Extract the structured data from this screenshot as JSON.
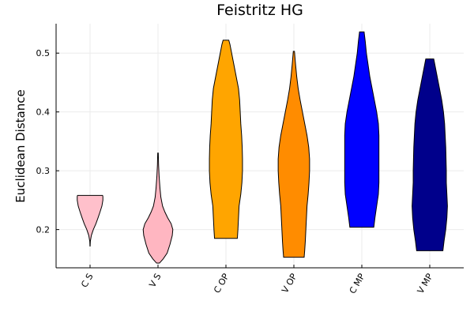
{
  "chart_data": {
    "type": "violin",
    "title": "Feistritz HG",
    "xlabel": "",
    "ylabel": "Euclidean Distance",
    "ylim": [
      0.135,
      0.55
    ],
    "yticks": [
      0.2,
      0.3,
      0.4,
      0.5
    ],
    "ytick_labels": [
      "0.2",
      "0.3",
      "0.4",
      "0.5"
    ],
    "grid": true,
    "legend": "none",
    "categories": [
      "C S",
      "V S",
      "C OP",
      "V OP",
      "C MP",
      "V MP"
    ],
    "series": [
      {
        "category": "C S",
        "color": "#FFC0CB",
        "min": 0.172,
        "max": 0.258,
        "profile": [
          [
            0.172,
            0.003
          ],
          [
            0.18,
            0.01
          ],
          [
            0.19,
            0.045
          ],
          [
            0.2,
            0.115
          ],
          [
            0.21,
            0.205
          ],
          [
            0.22,
            0.28
          ],
          [
            0.23,
            0.35
          ],
          [
            0.24,
            0.415
          ],
          [
            0.25,
            0.45
          ],
          [
            0.256,
            0.45
          ],
          [
            0.258,
            0.44
          ]
        ]
      },
      {
        "category": "V S",
        "color": "#FFB6C1",
        "min": 0.143,
        "max": 0.33,
        "profile": [
          [
            0.143,
            0.05
          ],
          [
            0.15,
            0.18
          ],
          [
            0.16,
            0.32
          ],
          [
            0.175,
            0.42
          ],
          [
            0.19,
            0.5
          ],
          [
            0.2,
            0.52
          ],
          [
            0.21,
            0.46
          ],
          [
            0.22,
            0.34
          ],
          [
            0.23,
            0.24
          ],
          [
            0.24,
            0.16
          ],
          [
            0.255,
            0.1
          ],
          [
            0.27,
            0.07
          ],
          [
            0.29,
            0.04
          ],
          [
            0.31,
            0.02
          ],
          [
            0.33,
            0.01
          ]
        ]
      },
      {
        "category": "C OP",
        "color": "#FFA500",
        "min": 0.185,
        "max": 0.522,
        "profile": [
          [
            0.185,
            0.4
          ],
          [
            0.2,
            0.42
          ],
          [
            0.22,
            0.44
          ],
          [
            0.24,
            0.46
          ],
          [
            0.26,
            0.52
          ],
          [
            0.28,
            0.56
          ],
          [
            0.3,
            0.58
          ],
          [
            0.32,
            0.58
          ],
          [
            0.34,
            0.57
          ],
          [
            0.36,
            0.55
          ],
          [
            0.38,
            0.52
          ],
          [
            0.4,
            0.5
          ],
          [
            0.42,
            0.48
          ],
          [
            0.44,
            0.44
          ],
          [
            0.46,
            0.36
          ],
          [
            0.48,
            0.28
          ],
          [
            0.5,
            0.2
          ],
          [
            0.515,
            0.14
          ],
          [
            0.522,
            0.1
          ]
        ]
      },
      {
        "category": "V OP",
        "color": "#FF8C00",
        "min": 0.153,
        "max": 0.503,
        "profile": [
          [
            0.153,
            0.36
          ],
          [
            0.165,
            0.38
          ],
          [
            0.18,
            0.4
          ],
          [
            0.2,
            0.42
          ],
          [
            0.22,
            0.44
          ],
          [
            0.24,
            0.46
          ],
          [
            0.26,
            0.5
          ],
          [
            0.28,
            0.53
          ],
          [
            0.3,
            0.55
          ],
          [
            0.32,
            0.55
          ],
          [
            0.34,
            0.52
          ],
          [
            0.36,
            0.46
          ],
          [
            0.38,
            0.38
          ],
          [
            0.4,
            0.3
          ],
          [
            0.42,
            0.22
          ],
          [
            0.44,
            0.15
          ],
          [
            0.46,
            0.1
          ],
          [
            0.48,
            0.06
          ],
          [
            0.503,
            0.02
          ]
        ]
      },
      {
        "category": "C MP",
        "color": "#0000FF",
        "min": 0.204,
        "max": 0.536,
        "profile": [
          [
            0.204,
            0.42
          ],
          [
            0.22,
            0.46
          ],
          [
            0.24,
            0.52
          ],
          [
            0.26,
            0.58
          ],
          [
            0.28,
            0.6
          ],
          [
            0.3,
            0.6
          ],
          [
            0.32,
            0.6
          ],
          [
            0.34,
            0.6
          ],
          [
            0.36,
            0.6
          ],
          [
            0.38,
            0.58
          ],
          [
            0.4,
            0.52
          ],
          [
            0.42,
            0.44
          ],
          [
            0.44,
            0.36
          ],
          [
            0.46,
            0.28
          ],
          [
            0.48,
            0.22
          ],
          [
            0.5,
            0.16
          ],
          [
            0.52,
            0.12
          ],
          [
            0.536,
            0.08
          ]
        ]
      },
      {
        "category": "V MP",
        "color": "#00008B",
        "min": 0.164,
        "max": 0.49,
        "profile": [
          [
            0.164,
            0.46
          ],
          [
            0.18,
            0.5
          ],
          [
            0.2,
            0.56
          ],
          [
            0.22,
            0.6
          ],
          [
            0.24,
            0.62
          ],
          [
            0.26,
            0.6
          ],
          [
            0.28,
            0.58
          ],
          [
            0.3,
            0.58
          ],
          [
            0.32,
            0.57
          ],
          [
            0.34,
            0.56
          ],
          [
            0.36,
            0.54
          ],
          [
            0.38,
            0.52
          ],
          [
            0.4,
            0.48
          ],
          [
            0.42,
            0.42
          ],
          [
            0.44,
            0.34
          ],
          [
            0.46,
            0.26
          ],
          [
            0.48,
            0.18
          ],
          [
            0.49,
            0.14
          ]
        ]
      }
    ]
  }
}
